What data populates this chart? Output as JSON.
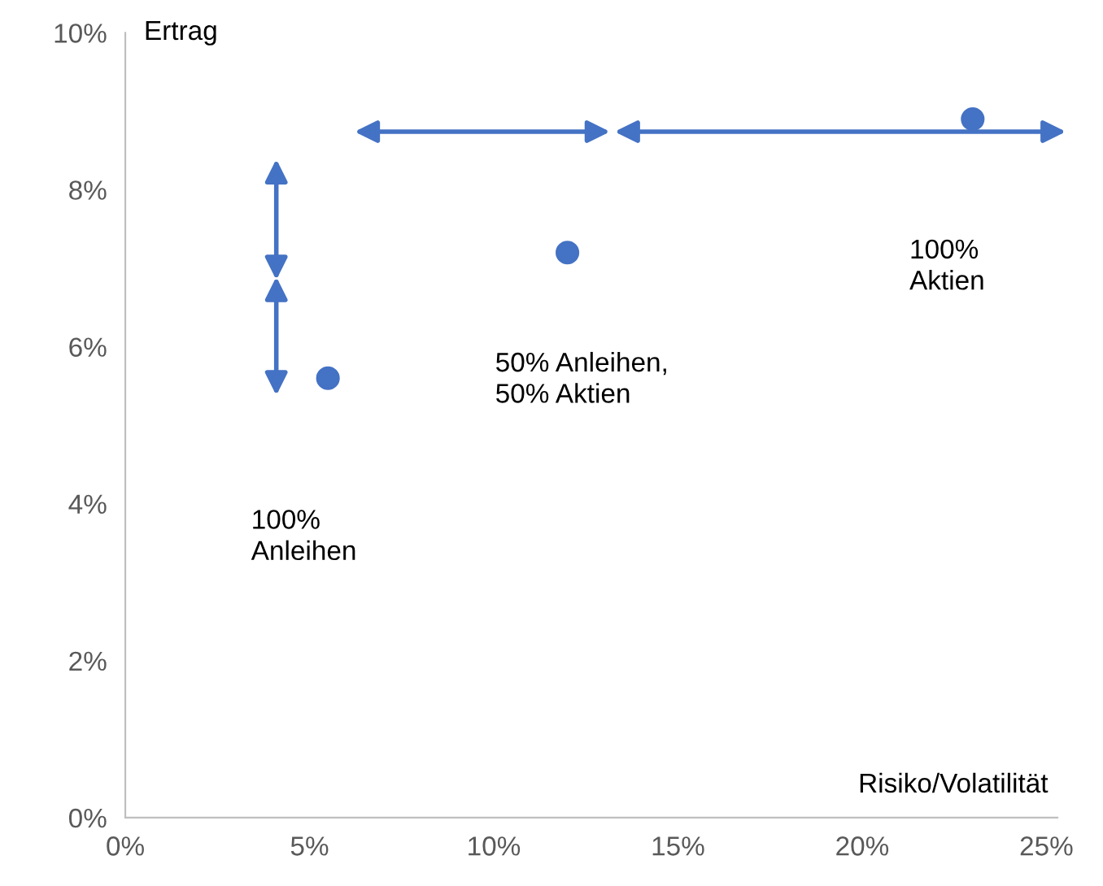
{
  "chart_data": {
    "type": "scatter",
    "xlabel": "Risiko/Volatilität",
    "ylabel": "Ertrag",
    "x": [
      5.5,
      12,
      23
    ],
    "values": [
      5.6,
      7.2,
      8.9
    ],
    "color": "#4472c4",
    "marker": "circle",
    "xlim": [
      0,
      25.3
    ],
    "ylim": [
      0,
      10
    ],
    "xticks": [
      {
        "value": 0,
        "label": "0%"
      },
      {
        "value": 5,
        "label": "5%"
      },
      {
        "value": 10,
        "label": "10%"
      },
      {
        "value": 15,
        "label": "15%"
      },
      {
        "value": 20,
        "label": "20%"
      },
      {
        "value": 25,
        "label": "25%"
      }
    ],
    "yticks": [
      {
        "value": 0,
        "label": "0%"
      },
      {
        "value": 2,
        "label": "2%"
      },
      {
        "value": 4,
        "label": "4%"
      },
      {
        "value": 6,
        "label": "6%"
      },
      {
        "value": 8,
        "label": "8%"
      },
      {
        "value": 10,
        "label": "10%"
      }
    ],
    "grid": false,
    "legend": false,
    "annotations": [
      "100%\nAnleihen",
      "50% Anleihen,\n50% Aktien",
      "100%\nAktien"
    ]
  }
}
